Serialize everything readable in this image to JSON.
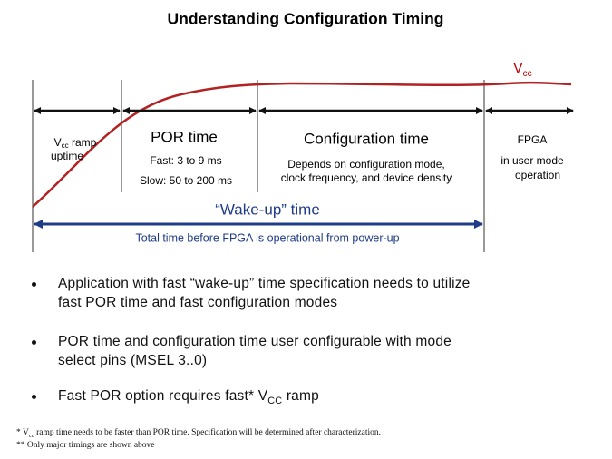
{
  "title": "Understanding Configuration Timing",
  "diagram": {
    "vcc_label": {
      "main": "V",
      "sub": "cc"
    },
    "sections": [
      {
        "lines": [
          {
            "main": "V",
            "sub": "cc",
            "rest": " ramp"
          },
          "uptime"
        ]
      },
      {
        "heading": "POR time",
        "lines": [
          "Fast: 3 to 9 ms",
          "Slow: 50 to 200 ms"
        ]
      },
      {
        "heading": "Configuration time",
        "lines": [
          "Depends on configuration mode,",
          "clock frequency, and device density"
        ]
      },
      {
        "lines": [
          "FPGA",
          "in user mode",
          "operation"
        ]
      }
    ],
    "wake_up": {
      "heading": "“Wake-up” time",
      "caption": "Total time before FPGA is operational from power-up"
    }
  },
  "bullets": [
    {
      "lines": [
        "Application with fast “wake-up” time specification needs to utilize",
        "fast POR time and fast configuration modes"
      ]
    },
    {
      "lines": [
        "POR time and configuration time user configurable with mode",
        "select pins (MSEL 3..0)"
      ]
    },
    {
      "main": "Fast POR option requires fast* V",
      "sub": "CC",
      "rest": " ramp"
    }
  ],
  "footnotes": [
    {
      "star": "* ",
      "main": "V",
      "sub": "cc",
      "rest": " ramp time needs to be faster than POR time. Specification will be determined after characterization."
    },
    {
      "text": "** Only major timings are shown above"
    }
  ]
}
